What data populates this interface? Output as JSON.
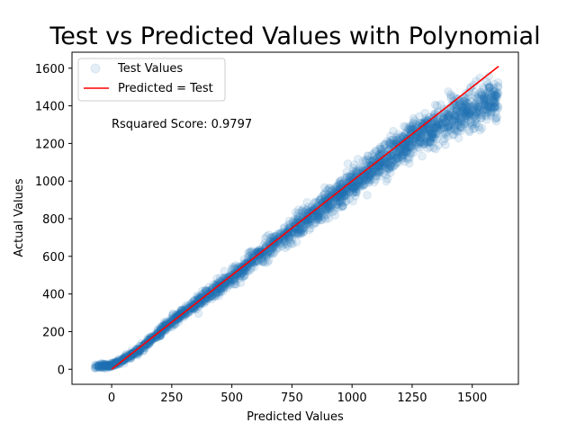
{
  "chart_data": {
    "type": "scatter",
    "title": "Test vs Predicted Values with Polynomial",
    "xlabel": "Predicted Values",
    "ylabel": "Actual Values",
    "xlim": [
      -165,
      1692
    ],
    "ylim": [
      -80,
      1685
    ],
    "xticks": [
      0,
      250,
      500,
      750,
      1000,
      1250,
      1500
    ],
    "yticks": [
      0,
      200,
      400,
      600,
      800,
      1000,
      1200,
      1400,
      1600
    ],
    "grid": false,
    "legend_position": "upper-left",
    "annotation": "Rsquared Score: 0.9797",
    "series": [
      {
        "name": "Test Values",
        "kind": "scatter",
        "color": "#1f77b4",
        "alpha": 0.12,
        "approx_points": 2600,
        "trend_points": [
          {
            "x": -70,
            "y": 15
          },
          {
            "x": 0,
            "y": 20
          },
          {
            "x": 100,
            "y": 85
          },
          {
            "x": 250,
            "y": 255
          },
          {
            "x": 500,
            "y": 490
          },
          {
            "x": 750,
            "y": 740
          },
          {
            "x": 1000,
            "y": 985
          },
          {
            "x": 1250,
            "y": 1225
          },
          {
            "x": 1400,
            "y": 1330
          },
          {
            "x": 1600,
            "y": 1440
          }
        ],
        "x_range": [
          -70,
          1610
        ]
      },
      {
        "name": "Predicted = Test",
        "kind": "line",
        "color": "#ff0000",
        "x": [
          0,
          1610
        ],
        "y": [
          0,
          1610
        ]
      }
    ]
  }
}
